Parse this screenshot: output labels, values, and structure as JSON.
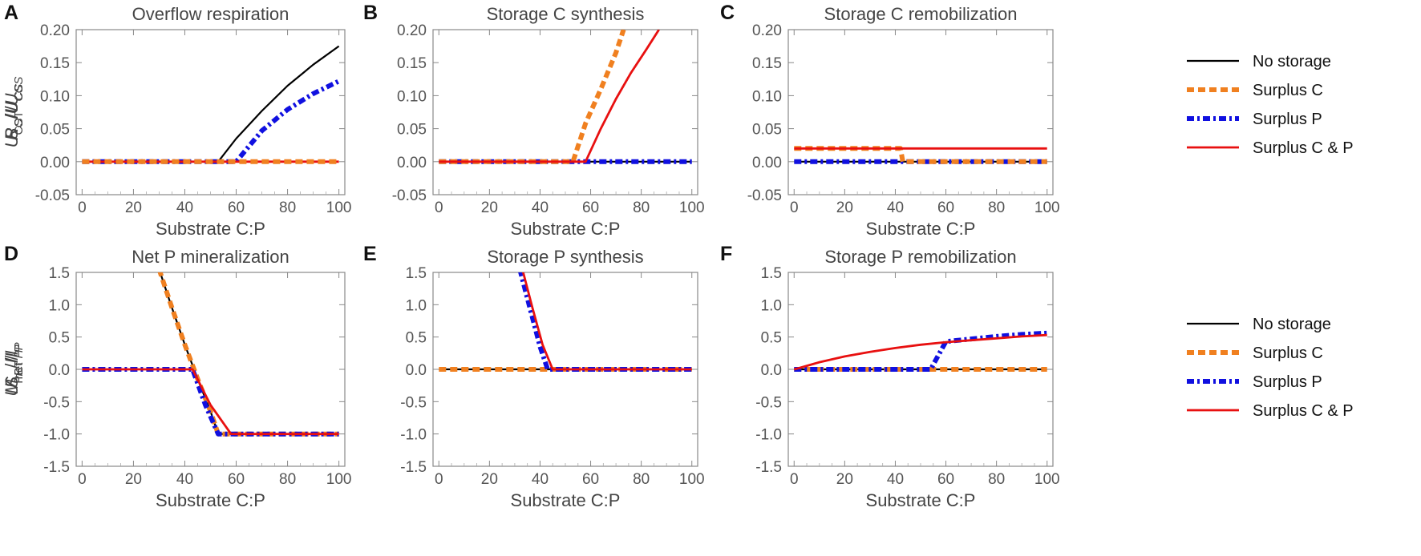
{
  "series_styles": [
    {
      "name": "No storage",
      "color": "#000000",
      "width": 2.2,
      "dash": ""
    },
    {
      "name": "Surplus C",
      "color": "#f08020",
      "width": 6,
      "dash": "9,5"
    },
    {
      "name": "Surplus P",
      "color": "#1010e0",
      "width": 6,
      "dash": "9,4,3,4"
    },
    {
      "name": "Surplus C & P",
      "color": "#e81010",
      "width": 2.8,
      "dash": ""
    }
  ],
  "legends": [
    {
      "entries": [
        "No storage",
        "Surplus C",
        "Surplus P",
        "Surplus C & P"
      ]
    },
    {
      "entries": [
        "No storage",
        "Surplus C",
        "Surplus P",
        "Surplus C & P"
      ]
    }
  ],
  "chart_data": [
    {
      "type": "line",
      "letter": "A",
      "title": "Overflow respiration",
      "xlabel": "Substrate C:P",
      "ylabel": {
        "main": "R",
        "sub": "O",
        "den_main": "U",
        "den_sub": "CS"
      },
      "xlim": [
        0,
        100
      ],
      "ylim": [
        -0.05,
        0.2
      ],
      "xticks": [
        0,
        20,
        40,
        60,
        80,
        100
      ],
      "yticks": [
        "-0.05",
        "0.00",
        "0.05",
        "0.10",
        "0.15",
        "0.20"
      ],
      "series": [
        {
          "name": "No storage",
          "x": [
            0,
            53,
            60,
            70,
            80,
            90,
            100
          ],
          "y": [
            0,
            0,
            0.035,
            0.077,
            0.115,
            0.147,
            0.175
          ]
        },
        {
          "name": "Surplus P",
          "x": [
            0,
            60,
            70,
            80,
            90,
            100
          ],
          "y": [
            0,
            0,
            0.047,
            0.079,
            0.103,
            0.122
          ]
        },
        {
          "name": "Surplus C & P",
          "x": [
            0,
            100
          ],
          "y": [
            0,
            0
          ]
        },
        {
          "name": "Surplus C",
          "x": [
            0,
            100
          ],
          "y": [
            0,
            0
          ]
        }
      ]
    },
    {
      "type": "line",
      "letter": "B",
      "title": "Storage C synthesis",
      "xlabel": "Substrate C:P",
      "ylabel": {
        "main": "S",
        "sub": "C",
        "den_main": "U",
        "den_sub": "CS"
      },
      "xlim": [
        0,
        100
      ],
      "ylim": [
        -0.05,
        0.2
      ],
      "xticks": [
        0,
        20,
        40,
        60,
        80,
        100
      ],
      "yticks": [
        "-0.05",
        "0.00",
        "0.05",
        "0.10",
        "0.15",
        "0.20"
      ],
      "series": [
        {
          "name": "No storage",
          "x": [
            0,
            100
          ],
          "y": [
            0,
            0
          ]
        },
        {
          "name": "Surplus P",
          "x": [
            0,
            100
          ],
          "y": [
            0,
            0
          ]
        },
        {
          "name": "Surplus C",
          "x": [
            0,
            53,
            58,
            64,
            70,
            73
          ],
          "y": [
            0,
            0,
            0.058,
            0.11,
            0.165,
            0.2
          ]
        },
        {
          "name": "Surplus C & P",
          "x": [
            0,
            58,
            64,
            70,
            76,
            82,
            87
          ],
          "y": [
            0,
            0,
            0.05,
            0.095,
            0.135,
            0.17,
            0.2
          ]
        }
      ]
    },
    {
      "type": "line",
      "letter": "C",
      "title": "Storage C remobilization",
      "xlabel": "Substrate C:P",
      "ylabel": {
        "main": "U",
        "sub": "CST",
        "den_main": "U",
        "den_sub": "CS"
      },
      "xlim": [
        0,
        100
      ],
      "ylim": [
        -0.05,
        0.2
      ],
      "xticks": [
        0,
        20,
        40,
        60,
        80,
        100
      ],
      "yticks": [
        "-0.05",
        "0.00",
        "0.05",
        "0.10",
        "0.15",
        "0.20"
      ],
      "series": [
        {
          "name": "No storage",
          "x": [
            0,
            100
          ],
          "y": [
            0,
            0
          ]
        },
        {
          "name": "Surplus P",
          "x": [
            0,
            100
          ],
          "y": [
            0,
            0
          ]
        },
        {
          "name": "Surplus C",
          "x": [
            0,
            42,
            43,
            100
          ],
          "y": [
            0.02,
            0.02,
            0,
            0
          ]
        },
        {
          "name": "Surplus C & P",
          "x": [
            0,
            100
          ],
          "y": [
            0.02,
            0.02
          ]
        }
      ]
    },
    {
      "type": "line",
      "letter": "D",
      "title": "Net P mineralization",
      "xlabel": "Substrate C:P",
      "ylabel": {
        "main": "M",
        "sub": "net",
        "den_main": "I",
        "den_sub": "P"
      },
      "xlim": [
        0,
        100
      ],
      "ylim": [
        -1.5,
        1.5
      ],
      "xticks": [
        0,
        20,
        40,
        60,
        80,
        100
      ],
      "yticks": [
        "-1.5",
        "-1.0",
        "-0.5",
        "0.0",
        "0.5",
        "1.0",
        "1.5"
      ],
      "series": [
        {
          "name": "No storage",
          "x": [
            30,
            35,
            40,
            45,
            50,
            53,
            100
          ],
          "y": [
            1.55,
            0.95,
            0.38,
            -0.15,
            -0.65,
            -1,
            -1
          ]
        },
        {
          "name": "Surplus C",
          "x": [
            30,
            35,
            40,
            45,
            50,
            53,
            100
          ],
          "y": [
            1.55,
            0.95,
            0.38,
            -0.15,
            -0.65,
            -1,
            -1
          ]
        },
        {
          "name": "Surplus P",
          "x": [
            0,
            43,
            48,
            53,
            100
          ],
          "y": [
            0,
            0,
            -0.55,
            -1,
            -1
          ]
        },
        {
          "name": "Surplus C & P",
          "x": [
            0,
            43,
            50,
            58,
            100
          ],
          "y": [
            0,
            0,
            -0.55,
            -1,
            -1
          ]
        }
      ]
    },
    {
      "type": "line",
      "letter": "E",
      "title": "Storage P synthesis",
      "xlabel": "Substrate C:P",
      "ylabel": {
        "main": "S",
        "sub": "P",
        "den_main": "I",
        "den_sub": "P"
      },
      "xlim": [
        0,
        100
      ],
      "ylim": [
        -1.5,
        1.5
      ],
      "xticks": [
        0,
        20,
        40,
        60,
        80,
        100
      ],
      "yticks": [
        "-1.5",
        "-1.0",
        "-0.5",
        "0.0",
        "0.5",
        "1.0",
        "1.5"
      ],
      "series": [
        {
          "name": "No storage",
          "x": [
            0,
            100
          ],
          "y": [
            0,
            0
          ]
        },
        {
          "name": "Surplus C",
          "x": [
            0,
            100
          ],
          "y": [
            0,
            0
          ]
        },
        {
          "name": "Surplus P",
          "x": [
            32,
            36,
            40,
            43,
            100
          ],
          "y": [
            1.55,
            0.95,
            0.35,
            0,
            0
          ]
        },
        {
          "name": "Surplus C & P",
          "x": [
            33,
            37,
            41,
            45,
            100
          ],
          "y": [
            1.55,
            0.95,
            0.38,
            0,
            0
          ]
        }
      ]
    },
    {
      "type": "line",
      "letter": "F",
      "title": "Storage P remobilization",
      "xlabel": "Substrate C:P",
      "ylabel": {
        "main": "U",
        "sub": "PST",
        "den_main": "I",
        "den_sub": "P"
      },
      "xlim": [
        0,
        100
      ],
      "ylim": [
        -1.5,
        1.5
      ],
      "xticks": [
        0,
        20,
        40,
        60,
        80,
        100
      ],
      "yticks": [
        "-1.5",
        "-1.0",
        "-0.5",
        "0.0",
        "0.5",
        "1.0",
        "1.5"
      ],
      "series": [
        {
          "name": "No storage",
          "x": [
            0,
            100
          ],
          "y": [
            0,
            0
          ]
        },
        {
          "name": "Surplus C",
          "x": [
            0,
            100
          ],
          "y": [
            0,
            0
          ]
        },
        {
          "name": "Surplus P",
          "x": [
            0,
            54,
            60,
            70,
            80,
            90,
            100
          ],
          "y": [
            0,
            0,
            0.43,
            0.47,
            0.51,
            0.54,
            0.56
          ]
        },
        {
          "name": "Surplus C & P",
          "x": [
            0,
            2,
            10,
            20,
            30,
            40,
            50,
            60,
            70,
            80,
            90,
            100
          ],
          "y": [
            0,
            0.02,
            0.11,
            0.2,
            0.27,
            0.33,
            0.38,
            0.42,
            0.45,
            0.48,
            0.51,
            0.53
          ]
        }
      ]
    }
  ]
}
